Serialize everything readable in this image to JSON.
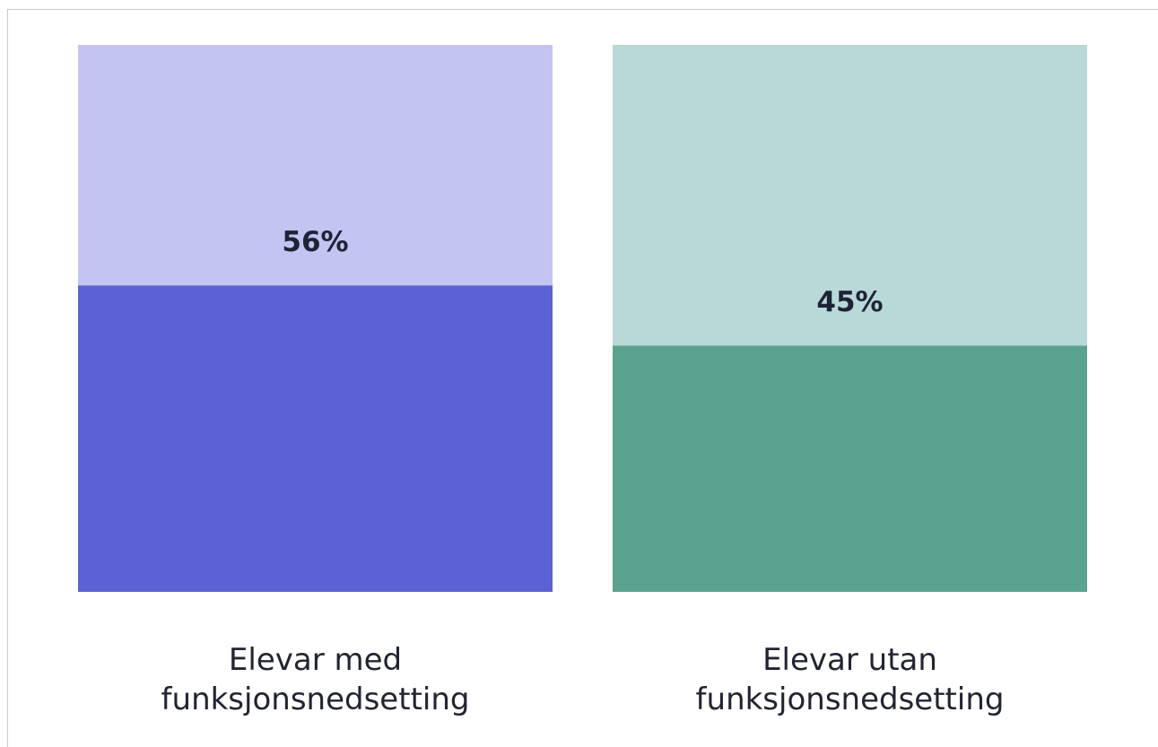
{
  "chart_data": {
    "type": "bar",
    "categories": [
      "Elevar med funksjonsnedsetting",
      "Elevar utan funksjonsnedsetting"
    ],
    "values": [
      56,
      45
    ],
    "value_labels": [
      "56%",
      "45%"
    ],
    "colors": [
      "#5b62d3",
      "#5ba38f"
    ],
    "background_colors": [
      "#c3c4f1",
      "#b8d9d7"
    ],
    "ylim": [
      0,
      100
    ]
  }
}
